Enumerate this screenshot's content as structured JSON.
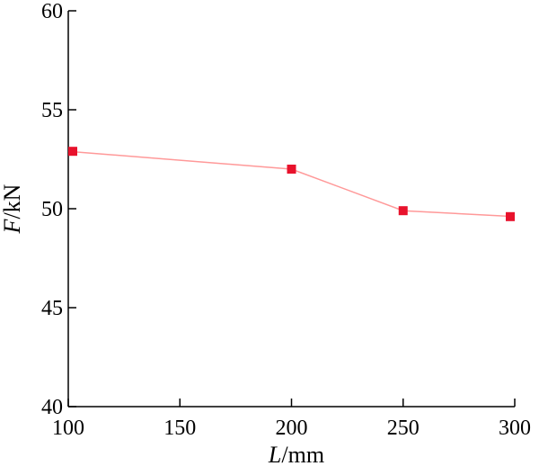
{
  "chart_data": {
    "type": "line",
    "title": "",
    "xlabel": {
      "var": "L",
      "unit": "/mm"
    },
    "ylabel": {
      "var": "F",
      "unit": "/kN"
    },
    "xlim": [
      100,
      300
    ],
    "ylim": [
      40,
      60
    ],
    "xticks": [
      100,
      150,
      200,
      250,
      300
    ],
    "yticks": [
      40,
      45,
      50,
      55,
      60
    ],
    "grid": false,
    "series": [
      {
        "color": "#e8122c",
        "line_color": "#ff9999",
        "marker": "square",
        "points": [
          {
            "x": 100,
            "y": 52.9
          },
          {
            "x": 200,
            "y": 52.0
          },
          {
            "x": 250,
            "y": 49.9
          },
          {
            "x": 300,
            "y": 49.6
          }
        ]
      }
    ]
  }
}
